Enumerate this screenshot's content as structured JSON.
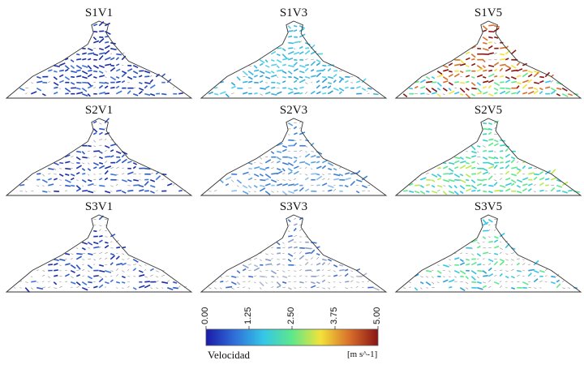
{
  "panels": [
    {
      "title": "S1V1",
      "palette": "blue-dark",
      "density": 0.85
    },
    {
      "title": "S1V3",
      "palette": "cyan",
      "density": 0.9
    },
    {
      "title": "S1V5",
      "palette": "hot",
      "density": 0.9
    },
    {
      "title": "S2V1",
      "palette": "blue-dark",
      "density": 0.65
    },
    {
      "title": "S2V3",
      "palette": "blue-light",
      "density": 0.75
    },
    {
      "title": "S2V5",
      "palette": "green",
      "density": 0.8
    },
    {
      "title": "S3V1",
      "palette": "blue-dark",
      "density": 0.45
    },
    {
      "title": "S3V3",
      "palette": "grey-blue",
      "density": 0.45
    },
    {
      "title": "S3V5",
      "palette": "cyan-sparse",
      "density": 0.5
    }
  ],
  "colorbar": {
    "title": "Velocidad",
    "unit": "[m s^-1]",
    "ticks": [
      "0.00",
      "1.25",
      "2.50",
      "3.75",
      "5.00"
    ],
    "min": 0,
    "max": 5,
    "colors": [
      "#1a1aa8",
      "#2f6fd8",
      "#34c6e8",
      "#5de88a",
      "#f3e23a",
      "#d8702a",
      "#8a1414"
    ]
  }
}
